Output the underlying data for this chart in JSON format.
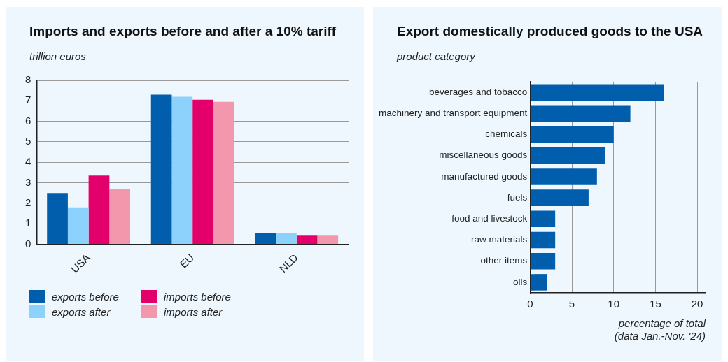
{
  "chart_data": [
    {
      "type": "bar",
      "title": "Imports and exports before and after a 10% tariff",
      "ylabel": "trillion euros",
      "categories": [
        "USA",
        "EU",
        "NLD"
      ],
      "series": [
        {
          "name": "exports before",
          "color": "#005eac",
          "values": [
            2.5,
            7.3,
            0.55
          ]
        },
        {
          "name": "exports after",
          "color": "#8dd2fc",
          "values": [
            1.8,
            7.2,
            0.55
          ]
        },
        {
          "name": "imports before",
          "color": "#e3006b",
          "values": [
            3.35,
            7.05,
            0.45
          ]
        },
        {
          "name": "imports after",
          "color": "#f397ad",
          "values": [
            2.7,
            6.95,
            0.45
          ]
        }
      ],
      "ylim": [
        0,
        8
      ],
      "yticks": [
        0,
        1,
        2,
        3,
        4,
        5,
        6,
        7,
        8
      ],
      "grid": "y",
      "legend": "bottom"
    },
    {
      "type": "bar",
      "orientation": "horizontal",
      "title": "Export domestically produced goods to the USA",
      "ylabel": "product category",
      "xlabel": "percentage of total",
      "annotations": [
        "(data Jan.-Nov. '24)"
      ],
      "categories": [
        "beverages and tobacco",
        "machinery and transport equipment",
        "chemicals",
        "miscellaneous goods",
        "manufactured goods",
        "fuels",
        "food and livestock",
        "raw materials",
        "other items",
        "oils"
      ],
      "color": "#005eac",
      "values": [
        16,
        12,
        10,
        9,
        8,
        7,
        3,
        3,
        3,
        2
      ],
      "xlim": [
        0,
        21
      ],
      "xticks": [
        0,
        5,
        10,
        15,
        20
      ],
      "grid": "x"
    }
  ]
}
